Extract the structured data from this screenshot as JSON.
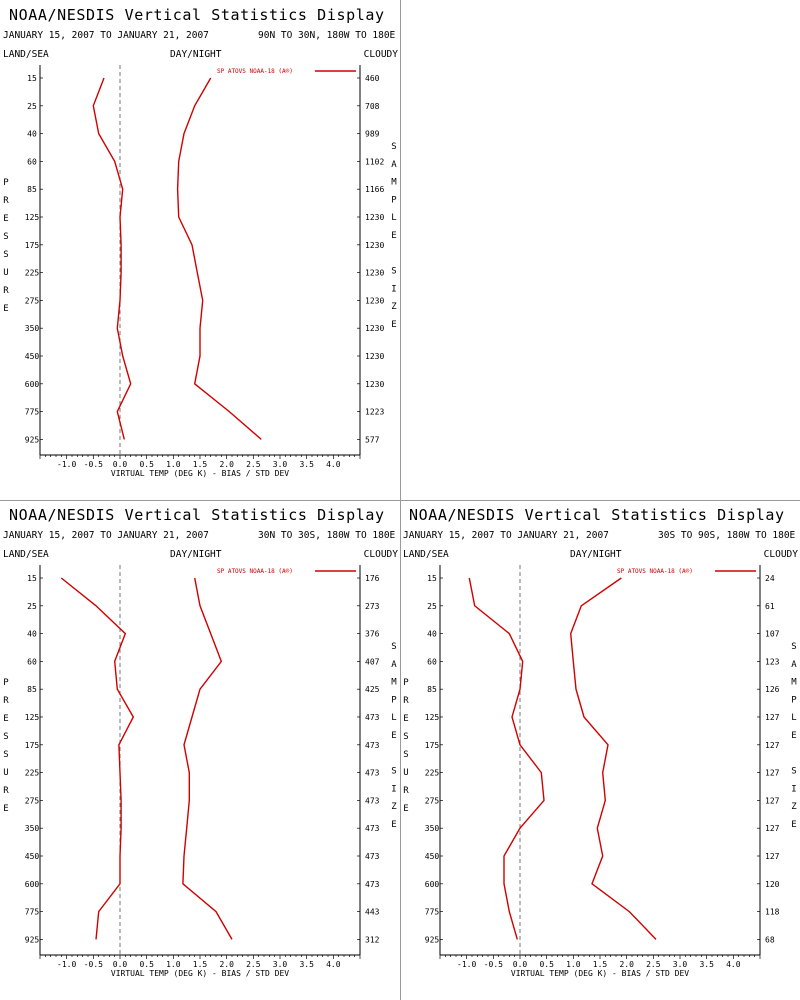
{
  "colors": {
    "series": "#d00000",
    "axis": "#000000",
    "zero_line": "#555555",
    "divider": "#9a9a9a"
  },
  "panels": [
    {
      "title": "NOAA/NESDIS Vertical Statistics Display",
      "date_range": "JANUARY 15, 2007 TO JANUARY 21, 2007",
      "region": "90N TO 30N, 180W TO 180E",
      "left_header": "LAND/SEA",
      "center_header": "DAY/NIGHT",
      "right_header": "CLOUDY",
      "y_axis_letters": [
        "P",
        "R",
        "E",
        "S",
        "S",
        "U",
        "R",
        "E"
      ],
      "right_axis_letters": [
        "S",
        "A",
        "M",
        "P",
        "L",
        "E",
        " ",
        "S",
        "I",
        "Z",
        "E"
      ],
      "legend": "SP ATOVS NOAA-18 (A®)",
      "chart_data": {
        "type": "line",
        "xlabel": "VIRTUAL TEMP (DEG K) - BIAS / STD DEV",
        "xlim": [
          -1.5,
          4.5
        ],
        "xticks": [
          "-1.0",
          "-0.5",
          "0.0",
          "0.5",
          "1.0",
          "1.5",
          "2.0",
          "2.5",
          "3.0",
          "3.5",
          "4.0"
        ],
        "pressure_levels": [
          "15",
          "25",
          "40",
          "60",
          "85",
          "125",
          "175",
          "225",
          "275",
          "350",
          "450",
          "600",
          "775",
          "925"
        ],
        "sample_size": [
          "460",
          "708",
          "989",
          "1102",
          "1166",
          "1230",
          "1230",
          "1230",
          "1230",
          "1230",
          "1230",
          "1230",
          "1223",
          "577"
        ],
        "series": [
          {
            "name": "BIAS",
            "values": [
              -0.3,
              -0.5,
              -0.4,
              -0.1,
              0.05,
              0.0,
              0.02,
              0.02,
              0.0,
              -0.05,
              0.05,
              0.2,
              -0.05,
              0.08
            ]
          },
          {
            "name": "STD DEV",
            "values": [
              1.7,
              1.4,
              1.2,
              1.1,
              1.08,
              1.1,
              1.35,
              1.45,
              1.55,
              1.5,
              1.5,
              1.4,
              2.05,
              2.65
            ]
          }
        ]
      }
    },
    {
      "title": "NOAA/NESDIS Vertical Statistics Display",
      "date_range": "JANUARY 15, 2007 TO JANUARY 21, 2007",
      "region": "30N TO 30S, 180W TO 180E",
      "left_header": "LAND/SEA",
      "center_header": "DAY/NIGHT",
      "right_header": "CLOUDY",
      "y_axis_letters": [
        "P",
        "R",
        "E",
        "S",
        "S",
        "U",
        "R",
        "E"
      ],
      "right_axis_letters": [
        "S",
        "A",
        "M",
        "P",
        "L",
        "E",
        " ",
        "S",
        "I",
        "Z",
        "E"
      ],
      "legend": "SP ATOVS NOAA-18 (A®)",
      "chart_data": {
        "type": "line",
        "xlabel": "VIRTUAL TEMP (DEG K) - BIAS / STD DEV",
        "xlim": [
          -1.5,
          4.5
        ],
        "xticks": [
          "-1.0",
          "-0.5",
          "0.0",
          "0.5",
          "1.0",
          "1.5",
          "2.0",
          "2.5",
          "3.0",
          "3.5",
          "4.0"
        ],
        "pressure_levels": [
          "15",
          "25",
          "40",
          "60",
          "85",
          "125",
          "175",
          "225",
          "275",
          "350",
          "450",
          "600",
          "775",
          "925"
        ],
        "sample_size": [
          "176",
          "273",
          "376",
          "407",
          "425",
          "473",
          "473",
          "473",
          "473",
          "473",
          "473",
          "473",
          "443",
          "312"
        ],
        "series": [
          {
            "name": "BIAS",
            "values": [
              -1.1,
              -0.45,
              0.1,
              -0.1,
              -0.05,
              0.25,
              -0.02,
              0.0,
              0.02,
              0.02,
              0.0,
              0.0,
              -0.4,
              -0.45
            ]
          },
          {
            "name": "STD DEV",
            "values": [
              1.4,
              1.5,
              1.7,
              1.9,
              1.5,
              1.35,
              1.2,
              1.3,
              1.3,
              1.25,
              1.2,
              1.18,
              1.8,
              2.1
            ]
          }
        ]
      }
    },
    {
      "title": "NOAA/NESDIS Vertical Statistics Display",
      "date_range": "JANUARY 15, 2007 TO JANUARY 21, 2007",
      "region": "30S TO 90S, 180W TO 180E",
      "left_header": "LAND/SEA",
      "center_header": "DAY/NIGHT",
      "right_header": "CLOUDY",
      "y_axis_letters": [
        "P",
        "R",
        "E",
        "S",
        "S",
        "U",
        "R",
        "E"
      ],
      "right_axis_letters": [
        "S",
        "A",
        "M",
        "P",
        "L",
        "E",
        " ",
        "S",
        "I",
        "Z",
        "E"
      ],
      "legend": "SP ATOVS NOAA-18 (A®)",
      "chart_data": {
        "type": "line",
        "xlabel": "VIRTUAL TEMP (DEG K) - BIAS / STD DEV",
        "xlim": [
          -1.5,
          4.5
        ],
        "xticks": [
          "-1.0",
          "-0.5",
          "0.0",
          "0.5",
          "1.0",
          "1.5",
          "2.0",
          "2.5",
          "3.0",
          "3.5",
          "4.0"
        ],
        "pressure_levels": [
          "15",
          "25",
          "40",
          "60",
          "85",
          "125",
          "175",
          "225",
          "275",
          "350",
          "450",
          "600",
          "775",
          "925"
        ],
        "sample_size": [
          "24",
          "61",
          "107",
          "123",
          "126",
          "127",
          "127",
          "127",
          "127",
          "127",
          "127",
          "120",
          "118",
          "68"
        ],
        "series": [
          {
            "name": "BIAS",
            "values": [
              -0.95,
              -0.85,
              -0.2,
              0.05,
              0.0,
              -0.15,
              0.0,
              0.4,
              0.45,
              0.0,
              -0.3,
              -0.3,
              -0.2,
              -0.05
            ]
          },
          {
            "name": "STD DEV",
            "values": [
              1.9,
              1.15,
              0.95,
              1.0,
              1.05,
              1.2,
              1.65,
              1.55,
              1.6,
              1.45,
              1.55,
              1.35,
              2.05,
              2.55
            ]
          }
        ]
      }
    }
  ]
}
